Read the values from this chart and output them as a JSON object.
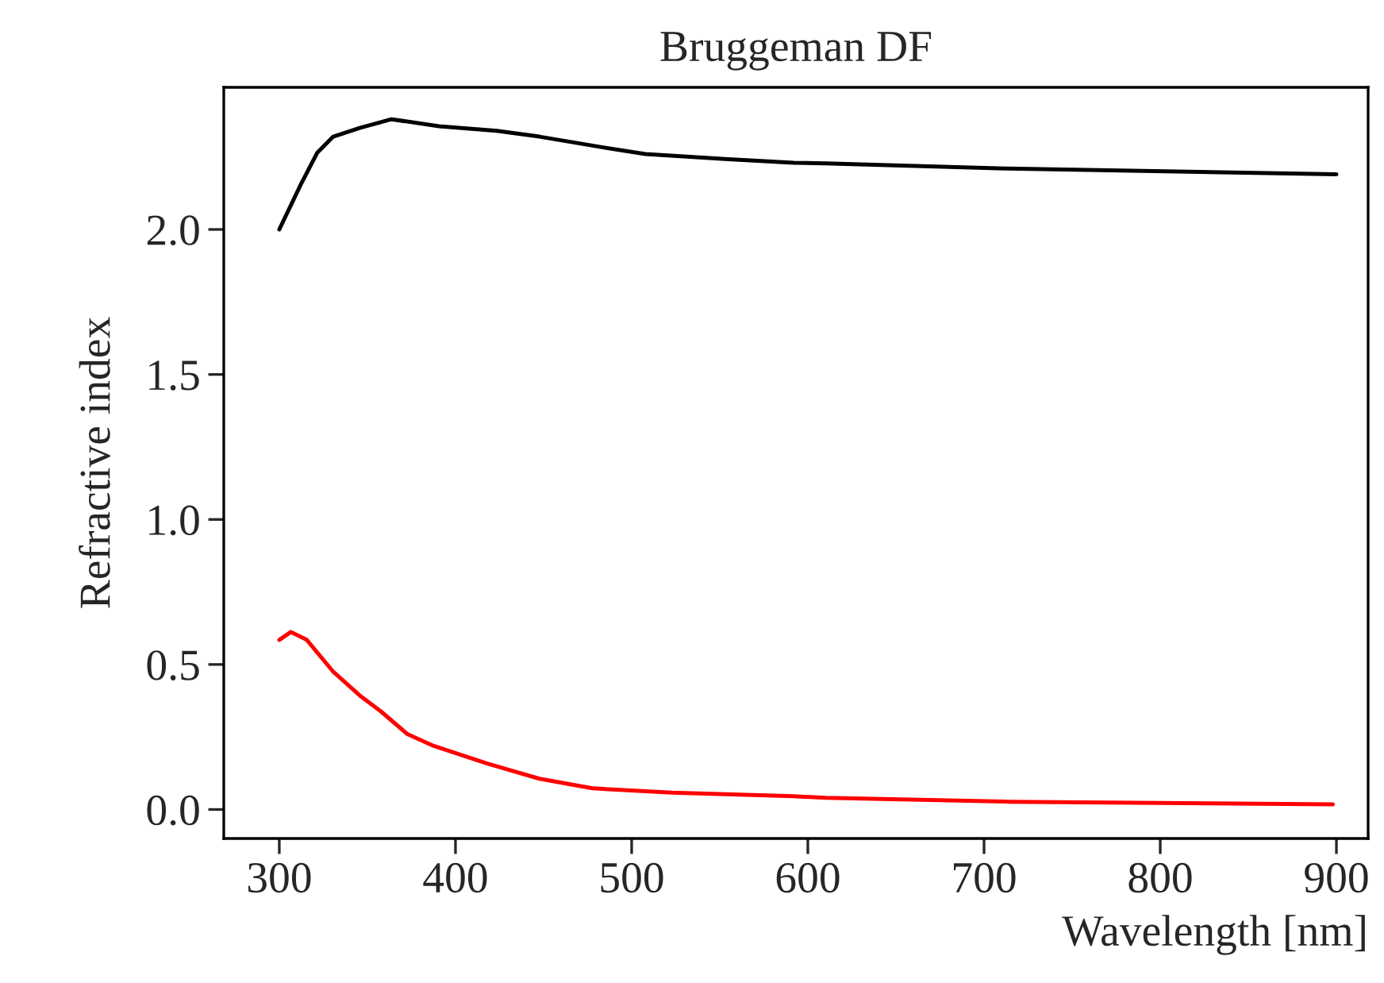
{
  "chart_data": {
    "type": "line",
    "title": "Bruggeman DF",
    "xlabel": "Wavelength [nm]",
    "ylabel": "Refractive index",
    "series": [
      {
        "color": "#000000",
        "x": [
          300,
          312.6,
          321.6,
          330.6,
          345.7,
          363.7,
          390.7,
          423.4,
          447.7,
          483.8,
          507.8,
          552.9,
          591.9,
          609.9,
          712,
          900
        ],
        "values": [
          2.0,
          2.16,
          2.265,
          2.32,
          2.35,
          2.38,
          2.356,
          2.34,
          2.32,
          2.283,
          2.26,
          2.243,
          2.23,
          2.228,
          2.21,
          2.19
        ]
      },
      {
        "color": "#ff0000",
        "x": [
          300,
          306.6,
          315.6,
          330.6,
          345.7,
          357.7,
          372.7,
          387.7,
          417.7,
          447.7,
          477.7,
          522.8,
          591.9,
          609.9,
          712,
          898
        ],
        "values": [
          0.585,
          0.612,
          0.585,
          0.475,
          0.393,
          0.338,
          0.26,
          0.219,
          0.159,
          0.106,
          0.073,
          0.058,
          0.046,
          0.04,
          0.027,
          0.018
        ]
      }
    ],
    "xlim": [
      268.5,
      918
    ],
    "ylim": [
      -0.1,
      2.49
    ],
    "xticks": [
      300,
      400,
      500,
      600,
      700,
      800,
      900
    ],
    "yticks": [
      {
        "value": 0,
        "label": "0.0"
      },
      {
        "value": 0.5,
        "label": "0.5"
      },
      {
        "value": 1,
        "label": "1.0"
      },
      {
        "value": 1.5,
        "label": "1.5"
      },
      {
        "value": 2,
        "label": "2.0"
      }
    ],
    "grid": false
  }
}
